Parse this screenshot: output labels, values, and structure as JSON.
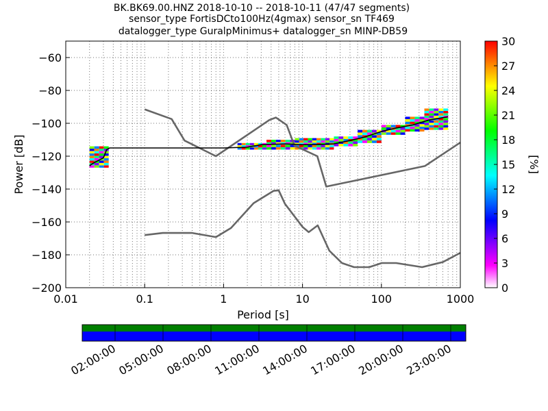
{
  "title": {
    "line1": "BK.BK69.00.HNZ   2018-10-10 -- 2018-10-11  (47/47 segments)",
    "line2": "sensor_type FortisDCto100Hz(4gmax) sensor_sn TF469",
    "line3": "datalogger_type GuralpMinimus+ datalogger_sn MINP-DB59"
  },
  "chart_data": {
    "type": "heatmap",
    "xlabel": "Period [s]",
    "ylabel": "Power [dB]",
    "xscale": "log",
    "xlim": [
      0.01,
      1000
    ],
    "ylim": [
      -200,
      -50
    ],
    "grid": true,
    "x_ticks": [
      {
        "value": 0.01,
        "label": "0.01"
      },
      {
        "value": 0.1,
        "label": "0.1"
      },
      {
        "value": 1,
        "label": "1"
      },
      {
        "value": 10,
        "label": "10"
      },
      {
        "value": 100,
        "label": "100"
      },
      {
        "value": 1000,
        "label": "1000"
      }
    ],
    "y_ticks": [
      {
        "value": -60,
        "label": "−60"
      },
      {
        "value": -80,
        "label": "−80"
      },
      {
        "value": -100,
        "label": "−100"
      },
      {
        "value": -120,
        "label": "−120"
      },
      {
        "value": -140,
        "label": "−140"
      },
      {
        "value": -160,
        "label": "−160"
      },
      {
        "value": -180,
        "label": "−180"
      },
      {
        "value": -200,
        "label": "−200"
      }
    ],
    "colorbar": {
      "label": "[%]",
      "range": [
        0,
        30
      ],
      "ticks": [
        "0",
        "3",
        "6",
        "9",
        "12",
        "15",
        "18",
        "21",
        "24",
        "27",
        "30"
      ],
      "colors": [
        "#ffffff",
        "#ff00ff",
        "#8000ff",
        "#0000ff",
        "#0080ff",
        "#00ffff",
        "#00ff80",
        "#00ff00",
        "#80ff00",
        "#ffff00",
        "#ff8000",
        "#ff0000"
      ]
    },
    "series": [
      {
        "role": "noise-model-high",
        "color": "#666666",
        "points": [
          [
            0.1,
            -91.5
          ],
          [
            0.22,
            -97.4
          ],
          [
            0.32,
            -110.5
          ],
          [
            0.8,
            -120
          ],
          [
            3.8,
            -98
          ],
          [
            4.6,
            -96.5
          ],
          [
            6.3,
            -101
          ],
          [
            7.9,
            -113.5
          ],
          [
            15.4,
            -120
          ],
          [
            20,
            -138.5
          ],
          [
            354.8,
            -126
          ],
          [
            10000,
            -80
          ]
        ]
      },
      {
        "role": "noise-model-low",
        "color": "#666666",
        "points": [
          [
            0.1,
            -168
          ],
          [
            0.17,
            -166.7
          ],
          [
            0.4,
            -166.7
          ],
          [
            0.8,
            -169.2
          ],
          [
            1.24,
            -163.7
          ],
          [
            2.4,
            -148.6
          ],
          [
            4.3,
            -141.1
          ],
          [
            5,
            -140.8
          ],
          [
            6,
            -149
          ],
          [
            10,
            -163
          ],
          [
            12,
            -166.2
          ],
          [
            15.6,
            -162.1
          ],
          [
            21.9,
            -177.5
          ],
          [
            31.6,
            -185
          ],
          [
            45,
            -187.5
          ],
          [
            70,
            -187.5
          ],
          [
            101,
            -185
          ],
          [
            154,
            -185
          ],
          [
            328,
            -187.5
          ],
          [
            600,
            -184.4
          ],
          [
            1000,
            -178.8
          ]
        ]
      },
      {
        "role": "mode",
        "color": "#000000",
        "points": [
          [
            0.02,
            -126
          ],
          [
            0.021,
            -125
          ],
          [
            0.025,
            -123
          ],
          [
            0.03,
            -121
          ],
          [
            0.033,
            -116
          ],
          [
            0.036,
            -115
          ],
          [
            0.05,
            -115
          ],
          [
            0.3,
            -115
          ],
          [
            1,
            -115
          ],
          [
            2,
            -114.5
          ],
          [
            3,
            -113
          ],
          [
            6,
            -112.5
          ],
          [
            10,
            -113
          ],
          [
            15,
            -113
          ],
          [
            25,
            -112.5
          ],
          [
            40,
            -110.5
          ],
          [
            60,
            -108.5
          ],
          [
            100,
            -105
          ],
          [
            150,
            -103
          ],
          [
            250,
            -101
          ],
          [
            400,
            -98
          ],
          [
            700,
            -96
          ]
        ]
      }
    ],
    "psd_bands": [
      {
        "x0": 0.02,
        "x1": 0.035,
        "ylow": -127,
        "yhigh": -114
      },
      {
        "x0": 1.5,
        "x1": 3.5,
        "ylow": -116,
        "yhigh": -112
      },
      {
        "x0": 3.5,
        "x1": 8,
        "ylow": -116,
        "yhigh": -110
      },
      {
        "x0": 8,
        "x1": 25,
        "ylow": -116,
        "yhigh": -109
      },
      {
        "x0": 25,
        "x1": 50,
        "ylow": -114,
        "yhigh": -108
      },
      {
        "x0": 50,
        "x1": 100,
        "ylow": -112,
        "yhigh": -104
      },
      {
        "x0": 100,
        "x1": 200,
        "ylow": -107,
        "yhigh": -101
      },
      {
        "x0": 200,
        "x1": 350,
        "ylow": -105,
        "yhigh": -96
      },
      {
        "x0": 350,
        "x1": 700,
        "ylow": -104,
        "yhigh": -91
      }
    ]
  },
  "timeline": {
    "colors": {
      "top": "#007f00",
      "bottom": "#0000ff"
    },
    "ticks": [
      "02:00:00",
      "05:00:00",
      "08:00:00",
      "11:00:00",
      "14:00:00",
      "17:00:00",
      "20:00:00",
      "23:00:00"
    ]
  }
}
